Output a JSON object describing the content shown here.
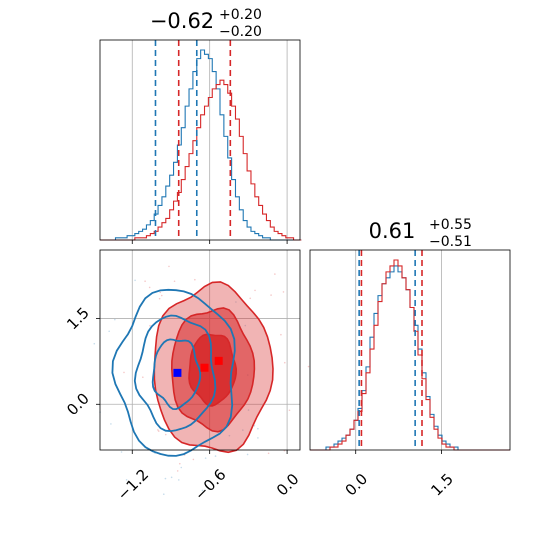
{
  "chart_data": {
    "type": "corner",
    "series": [
      {
        "name": "",
        "color": "#1f77b4"
      },
      {
        "name": "",
        "color": "#d62728"
      }
    ],
    "panels": [
      {
        "id": "hist-param1",
        "type": "histogram",
        "title_main": "−0.62",
        "title_sup": "+0.20",
        "title_sub": "−0.20",
        "xlim": [
          -1.45,
          0.1
        ],
        "quantiles": {
          "#1f77b4": [
            -1.02,
            -0.7
          ],
          "#d62728": [
            -0.84,
            -0.44
          ]
        },
        "blue_hist": {
          "bin_start": -1.45,
          "bin_width": 0.03,
          "values": [
            0,
            0,
            0,
            0,
            1,
            1,
            1,
            2,
            2,
            3,
            4,
            5,
            7,
            9,
            12,
            16,
            20,
            25,
            30,
            36,
            44,
            52,
            62,
            70,
            78,
            84,
            88,
            86,
            84,
            78,
            70,
            58,
            48,
            38,
            28,
            20,
            14,
            9,
            6,
            4,
            3,
            2,
            1,
            1,
            0,
            0,
            0,
            0,
            0,
            0,
            0,
            0
          ]
        },
        "red_hist": {
          "bin_start": -1.45,
          "bin_width": 0.03,
          "values": [
            0,
            0,
            0,
            0,
            0,
            0,
            0,
            0,
            0,
            1,
            1,
            1,
            2,
            3,
            4,
            6,
            8,
            10,
            14,
            18,
            22,
            28,
            34,
            40,
            46,
            52,
            58,
            62,
            66,
            70,
            72,
            74,
            72,
            68,
            62,
            56,
            48,
            40,
            32,
            26,
            20,
            16,
            12,
            9,
            6,
            4,
            3,
            2,
            1,
            1,
            0,
            0
          ]
        }
      },
      {
        "id": "hist-param2",
        "type": "histogram",
        "title_main": "0.61",
        "title_sup": "+0.55",
        "title_sub": "−0.51",
        "xlim": [
          -0.8,
          2.7
        ],
        "quantiles": {
          "#1f77b4": [
            0.06,
            1.04
          ],
          "#d62728": [
            0.1,
            1.16
          ]
        },
        "blue_hist": {
          "bin_start": -0.8,
          "bin_width": 0.07,
          "values": [
            0,
            0,
            0,
            0,
            1,
            1,
            2,
            3,
            4,
            5,
            7,
            10,
            14,
            20,
            28,
            38,
            46,
            52,
            56,
            58,
            60,
            62,
            60,
            58,
            54,
            48,
            42,
            34,
            26,
            18,
            12,
            8,
            5,
            3,
            2,
            1,
            1,
            0,
            0,
            0,
            0,
            0,
            0,
            0,
            0,
            0,
            0,
            0,
            0,
            0
          ]
        },
        "red_hist": {
          "bin_start": -0.8,
          "bin_width": 0.07,
          "values": [
            0,
            0,
            0,
            0,
            0,
            1,
            1,
            2,
            3,
            5,
            7,
            10,
            13,
            19,
            26,
            34,
            42,
            50,
            56,
            60,
            62,
            64,
            62,
            58,
            54,
            48,
            40,
            32,
            24,
            17,
            11,
            7,
            4,
            2,
            1,
            1,
            0,
            0,
            0,
            0,
            0,
            0,
            0,
            0,
            0,
            0,
            0,
            0,
            0,
            0
          ]
        },
        "xticks": [
          0.0,
          1.5
        ],
        "xtick_labels": [
          "0.0",
          "1.5"
        ]
      },
      {
        "id": "scatter-2d",
        "type": "contour",
        "xlim": [
          -1.45,
          0.1
        ],
        "ylim": [
          -0.8,
          2.7
        ],
        "xticks": [
          -1.2,
          -0.6,
          0.0
        ],
        "xtick_labels": [
          "−1.2",
          "−0.6",
          "0.0"
        ],
        "yticks": [
          0.0,
          1.5
        ],
        "ytick_labels": [
          "0.0",
          "1.5"
        ],
        "centers": {
          "#1f77b4": [
            -0.86,
            0.55
          ],
          "#d62728": [
            -0.58,
            0.62
          ]
        },
        "blue_markers": [
          [
            -0.85,
            0.55
          ]
        ],
        "red_markers": [
          [
            -0.64,
            0.64
          ],
          [
            -0.53,
            0.76
          ]
        ],
        "red_contours": [
          {
            "rx": 0.18,
            "ry": 0.62,
            "fill": 0.85
          },
          {
            "rx": 0.32,
            "ry": 1.05,
            "fill": 0.55
          },
          {
            "rx": 0.46,
            "ry": 1.45,
            "fill": 0.35
          }
        ],
        "blue_contours": [
          {
            "rx": 0.18,
            "ry": 0.6
          },
          {
            "rx": 0.3,
            "ry": 1.0
          },
          {
            "rx": 0.46,
            "ry": 1.45
          }
        ]
      }
    ]
  }
}
